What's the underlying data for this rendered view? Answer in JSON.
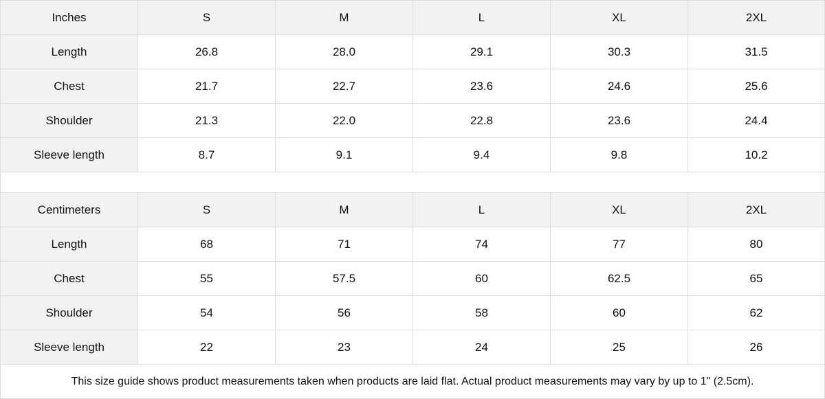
{
  "tables": [
    {
      "unit": "Inches",
      "sizes": [
        "S",
        "M",
        "L",
        "XL",
        "2XL"
      ],
      "rows": [
        {
          "label": "Length",
          "values": [
            "26.8",
            "28.0",
            "29.1",
            "30.3",
            "31.5"
          ]
        },
        {
          "label": "Chest",
          "values": [
            "21.7",
            "22.7",
            "23.6",
            "24.6",
            "25.6"
          ]
        },
        {
          "label": "Shoulder",
          "values": [
            "21.3",
            "22.0",
            "22.8",
            "23.6",
            "24.4"
          ]
        },
        {
          "label": "Sleeve length",
          "values": [
            "8.7",
            "9.1",
            "9.4",
            "9.8",
            "10.2"
          ]
        }
      ]
    },
    {
      "unit": "Centimeters",
      "sizes": [
        "S",
        "M",
        "L",
        "XL",
        "2XL"
      ],
      "rows": [
        {
          "label": "Length",
          "values": [
            "68",
            "71",
            "74",
            "77",
            "80"
          ]
        },
        {
          "label": "Chest",
          "values": [
            "55",
            "57.5",
            "60",
            "62.5",
            "65"
          ]
        },
        {
          "label": "Shoulder",
          "values": [
            "54",
            "56",
            "58",
            "60",
            "62"
          ]
        },
        {
          "label": "Sleeve length",
          "values": [
            "22",
            "23",
            "24",
            "25",
            "26"
          ]
        }
      ]
    }
  ],
  "note": "This size guide shows product measurements taken when products are laid flat.  Actual product measurements may vary by up to 1\" (2.5cm)."
}
